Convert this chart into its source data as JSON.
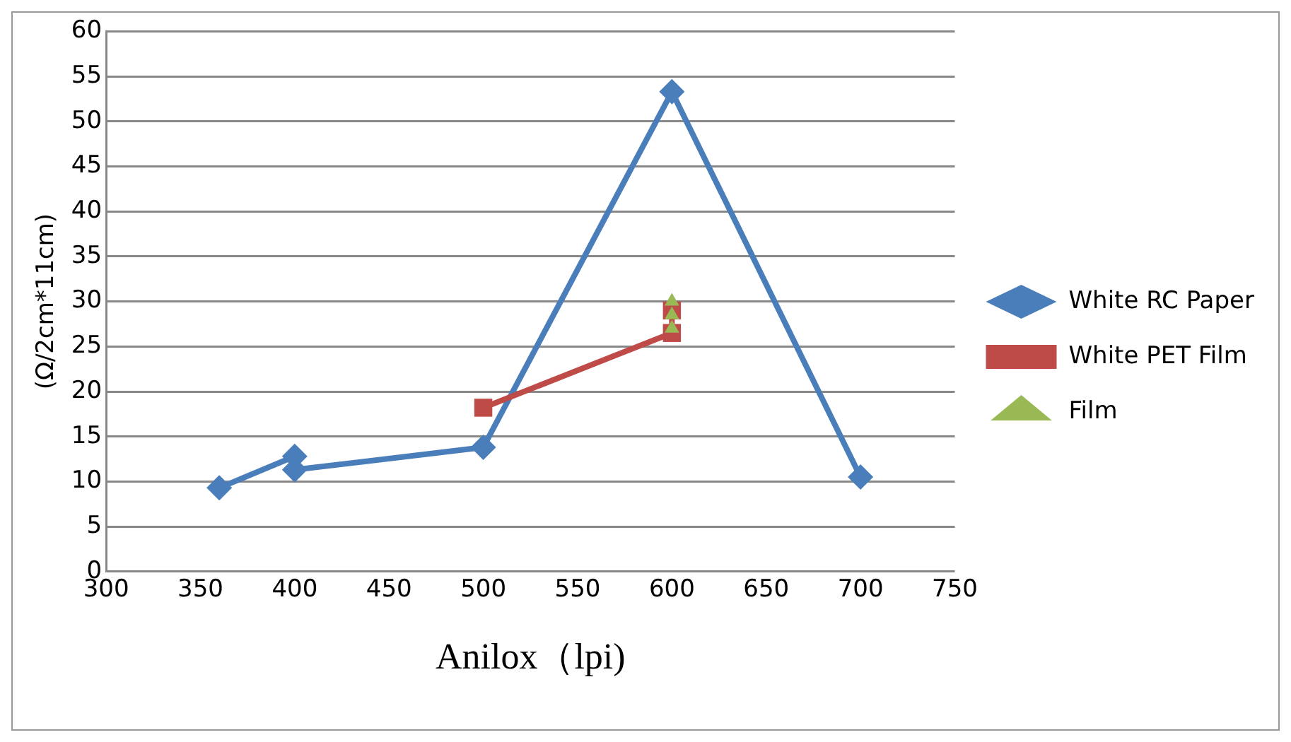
{
  "chart_data": {
    "type": "line",
    "xlabel": "Anilox（lpi)",
    "ylabel": "(Ω/2cm*11cm)",
    "xlim": [
      300,
      750
    ],
    "xticks": [
      300,
      350,
      400,
      450,
      500,
      550,
      600,
      650,
      700,
      750
    ],
    "ylim": [
      0,
      60
    ],
    "yticks": [
      0,
      5,
      10,
      15,
      20,
      25,
      30,
      35,
      40,
      45,
      50,
      55,
      60
    ],
    "grid": "y",
    "legend": "right",
    "series": [
      {
        "name": "White RC Paper",
        "color": "#4a7ebb",
        "marker": "diamond",
        "x": [
          360,
          400,
          400,
          500,
          600,
          700
        ],
        "values": [
          9.3,
          12.8,
          11.3,
          13.8,
          53.3,
          10.5
        ]
      },
      {
        "name": "White PET Film",
        "color": "#be4b48",
        "marker": "square",
        "x": [
          500,
          600,
          600
        ],
        "values": [
          18.2,
          26.5,
          29
        ]
      },
      {
        "name": "Film",
        "type": "scatter",
        "color": "#98b954",
        "marker": "triangle",
        "x": [
          600,
          600,
          600
        ],
        "values": [
          27,
          28.5,
          30
        ]
      }
    ]
  }
}
